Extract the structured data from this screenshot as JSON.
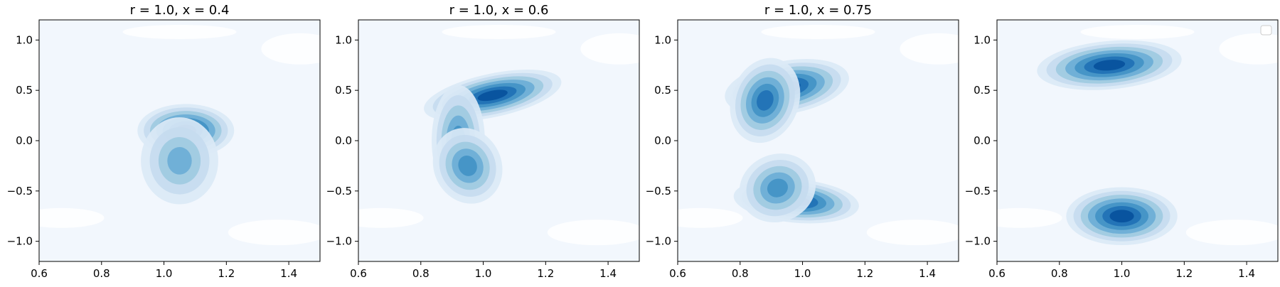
{
  "chart_data": [
    {
      "type": "contour",
      "title": "r = 1.0, x = 0.4",
      "xlabel": "",
      "ylabel": "",
      "xlim": [
        0.6,
        1.5
      ],
      "ylim": [
        -1.2,
        1.2
      ],
      "xticks": [
        0.6,
        0.8,
        1.0,
        1.2,
        1.4
      ],
      "yticks": [
        -1.0,
        -0.5,
        0.0,
        0.5,
        1.0
      ],
      "xtick_labels": [
        "0.6",
        "0.8",
        "1.0",
        "1.2",
        "1.4"
      ],
      "ytick_labels": [
        "−1.0",
        "−0.5",
        "0.0",
        "0.5",
        "1.0"
      ],
      "colormap": "Blues",
      "density_peaks": [
        {
          "x": 1.07,
          "y": 0.1,
          "weight": 1.0
        },
        {
          "x": 1.05,
          "y": -0.2,
          "weight": 0.5
        }
      ],
      "legend": false
    },
    {
      "type": "contour",
      "title": "r = 1.0, x = 0.6",
      "xlabel": "",
      "ylabel": "",
      "xlim": [
        0.6,
        1.5
      ],
      "ylim": [
        -1.2,
        1.2
      ],
      "xticks": [
        0.6,
        0.8,
        1.0,
        1.2,
        1.4
      ],
      "yticks": [
        -1.0,
        -0.5,
        0.0,
        0.5,
        1.0
      ],
      "xtick_labels": [
        "0.6",
        "0.8",
        "1.0",
        "1.2",
        "1.4"
      ],
      "ytick_labels": [
        "−1.0",
        "−0.5",
        "0.0",
        "0.5",
        "1.0"
      ],
      "colormap": "Blues",
      "density_peaks": [
        {
          "x": 1.03,
          "y": 0.45,
          "weight": 1.0
        },
        {
          "x": 0.92,
          "y": 0.0,
          "weight": 0.75
        },
        {
          "x": 0.95,
          "y": -0.25,
          "weight": 0.7
        }
      ],
      "legend": false
    },
    {
      "type": "contour",
      "title": "r = 1.0, x = 0.75",
      "xlabel": "",
      "ylabel": "",
      "xlim": [
        0.6,
        1.5
      ],
      "ylim": [
        -1.2,
        1.2
      ],
      "xticks": [
        0.6,
        0.8,
        1.0,
        1.2,
        1.4
      ],
      "yticks": [
        -1.0,
        -0.5,
        0.0,
        0.5,
        1.0
      ],
      "xtick_labels": [
        "0.6",
        "0.8",
        "1.0",
        "1.2",
        "1.4"
      ],
      "ytick_labels": [
        "−1.0",
        "−0.5",
        "0.0",
        "0.5",
        "1.0"
      ],
      "colormap": "Blues",
      "density_peaks": [
        {
          "x": 0.95,
          "y": 0.53,
          "weight": 1.0
        },
        {
          "x": 0.88,
          "y": 0.4,
          "weight": 0.8
        },
        {
          "x": 0.98,
          "y": -0.6,
          "weight": 1.0
        },
        {
          "x": 0.92,
          "y": -0.47,
          "weight": 0.75
        }
      ],
      "legend": false
    },
    {
      "type": "contour",
      "title": "",
      "xlabel": "",
      "ylabel": "",
      "xlim": [
        0.6,
        1.5
      ],
      "ylim": [
        -1.2,
        1.2
      ],
      "xticks": [
        0.6,
        0.8,
        1.0,
        1.2,
        1.4
      ],
      "yticks": [
        -1.0,
        -0.5,
        0.0,
        0.5,
        1.0
      ],
      "xtick_labels": [
        "0.6",
        "0.8",
        "1.0",
        "1.2",
        "1.4"
      ],
      "ytick_labels": [
        "−1.0",
        "−0.5",
        "0.0",
        "0.5",
        "1.0"
      ],
      "colormap": "Blues",
      "density_peaks": [
        {
          "x": 0.96,
          "y": 0.75,
          "weight": 1.0
        },
        {
          "x": 1.0,
          "y": -0.75,
          "weight": 1.0
        }
      ],
      "legend": true,
      "legend_position": "top-right"
    }
  ]
}
